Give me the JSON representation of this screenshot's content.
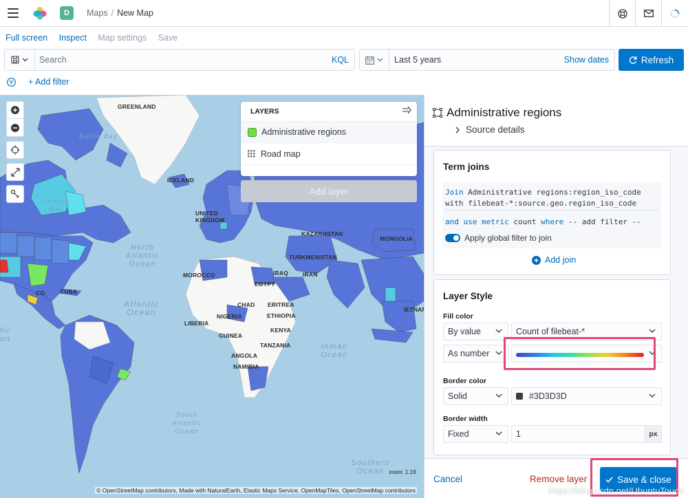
{
  "header": {
    "space_initial": "D",
    "breadcrumb_parent": "Maps",
    "breadcrumb_separator": "/",
    "breadcrumb_current": "New Map"
  },
  "topnav": {
    "full_screen": "Full screen",
    "inspect": "Inspect",
    "map_settings": "Map settings",
    "save": "Save"
  },
  "query": {
    "placeholder": "Search",
    "language": "KQL",
    "time_range": "Last 5 years",
    "show_dates": "Show dates",
    "refresh": "Refresh",
    "add_filter": "+ Add filter"
  },
  "map": {
    "labels": {
      "greenland": "GREENLAND",
      "baffin_bay": "Baffin\nBay",
      "hudson_bay": "Hudson\nBay",
      "iceland": "ICELAND",
      "united_kingdom": "UNITED\nKINGDOM",
      "kazakhstan": "KAZAKHSTAN",
      "mongolia": "MONGOLIA",
      "turkmenistan": "TURKMENISTAN",
      "morocco": "MOROCCO",
      "egypt": "EGYPT",
      "iraq": "IRAQ",
      "iran": "IRAN",
      "cuba": "CUBA",
      "mexico": "CO",
      "chad": "CHAD",
      "eritrea": "ERITREA",
      "ethiopia": "ETHIOPIA",
      "liberia": "LIBERIA",
      "nigeria": "NIGERIA",
      "guinea": "GUINEA",
      "kenya": "KENYA",
      "tanzania": "TANZANIA",
      "angola": "ANGOLA",
      "namibia": "NAMIBIA",
      "vietnam": "IETNAM",
      "north_atlantic": "North\nAtlantic\nOcean",
      "atlantic": "Atlantic\nOcean",
      "indian": "Indian\nOcean",
      "south_atlantic": "South\nAtlantic\nOcean",
      "southern": "Southern\nOcean",
      "pacific_fragment": "fic\nan"
    },
    "zoom_readout": "zoom: 1.19",
    "attribution": "© OpenStreetMap contributors, Made with NaturalEarth, Elastic Maps Service, OpenMapTiles, OpenStreetMap contributors"
  },
  "layers_panel": {
    "title": "LAYERS",
    "layers": [
      {
        "label": "Administrative regions",
        "selected": true
      },
      {
        "label": "Road map",
        "selected": false
      }
    ],
    "add_layer": "Add layer"
  },
  "details": {
    "title": "Administrative regions",
    "source_details": "Source details",
    "term_joins": {
      "title": "Term joins",
      "line1_kw": "Join",
      "line1_rest": "Administrative regions:region_iso_code",
      "line2_kw": "with",
      "line2_rest": "filebeat-*:source.geo.region_iso_code",
      "line3_kw1": "and use metric",
      "line3_mid": "count",
      "line3_kw2": "where",
      "line3_rest": "-- add filter --",
      "apply_global": "Apply global filter to join",
      "add_join": "Add join"
    },
    "layer_style": {
      "title": "Layer Style",
      "fill_color_label": "Fill color",
      "fill_mode": "By value",
      "fill_field": "Count of filebeat-*",
      "fill_as": "As number",
      "border_color_label": "Border color",
      "border_mode": "Solid",
      "border_color_value": "#3D3D3D",
      "border_width_label": "Border width",
      "width_mode": "Fixed",
      "width_value": "1",
      "width_unit": "px"
    },
    "footer": {
      "cancel": "Cancel",
      "remove": "Remove layer",
      "save_close": "Save & close"
    }
  },
  "watermark": "https://blog.csdn.net/UbuntuTouch",
  "colors": {
    "accent": "#0077cc",
    "highlight": "#e0457b",
    "danger": "#bd271e",
    "fill_swatch": "#70e040"
  }
}
